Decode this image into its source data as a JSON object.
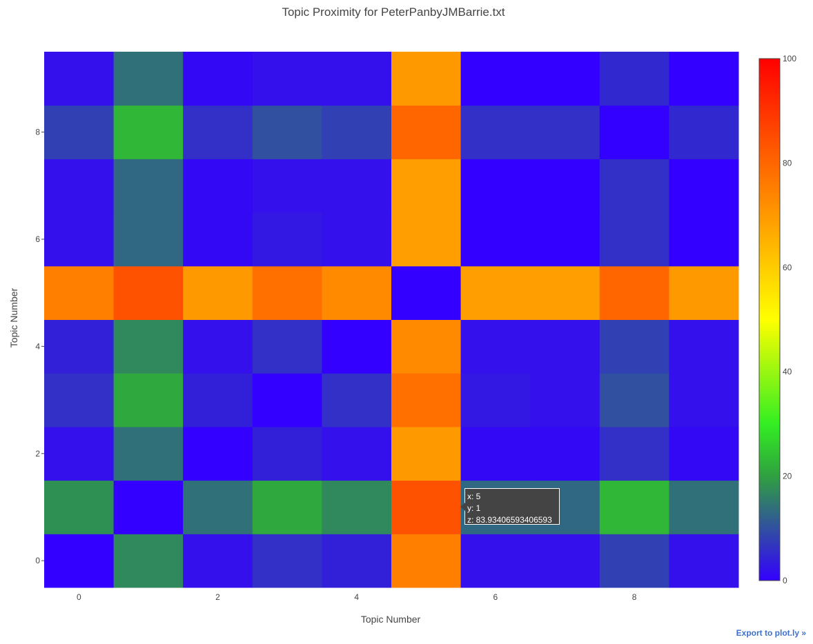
{
  "page": {
    "export_link": "Export to plot.ly »"
  },
  "hover": {
    "x_line": "x: 5",
    "y_line": "y: 1",
    "z_line": "z: 83.93406593406593"
  },
  "chart_data": {
    "type": "heatmap",
    "title": "Topic Proximity for PeterPanbyJMBarrie.txt",
    "xlabel": "Topic Number",
    "ylabel": "Topic Number",
    "x": [
      0,
      1,
      2,
      3,
      4,
      5,
      6,
      7,
      8,
      9
    ],
    "y": [
      0,
      1,
      2,
      3,
      4,
      5,
      6,
      7,
      8,
      9
    ],
    "x_ticks": [
      "0",
      "2",
      "4",
      "6",
      "8"
    ],
    "y_ticks": [
      "0",
      "2",
      "4",
      "6",
      "8"
    ],
    "zmin": 0,
    "zmax": 100,
    "colorbar_ticks": [
      "0",
      "20",
      "40",
      "60",
      "80",
      "100"
    ],
    "colorscale": [
      [
        0,
        "#3300ff"
      ],
      [
        0.2,
        "#2fa040"
      ],
      [
        0.3,
        "#33ee22"
      ],
      [
        0.5,
        "#ffff00"
      ],
      [
        0.7,
        "#ff9900"
      ],
      [
        1,
        "#ff0000"
      ]
    ],
    "z": [
      [
        0,
        17,
        2,
        6,
        4,
        75,
        2,
        2,
        8,
        2
      ],
      [
        18,
        0,
        14,
        21,
        17,
        84,
        13,
        13,
        23,
        14
      ],
      [
        2,
        14,
        0,
        4,
        2,
        70,
        1,
        1,
        6,
        1
      ],
      [
        6,
        21,
        4,
        0,
        6,
        78,
        3,
        2,
        10,
        2
      ],
      [
        4,
        17,
        2,
        6,
        0,
        73,
        2,
        2,
        8,
        2
      ],
      [
        75,
        84,
        70,
        78,
        73,
        0,
        69,
        69,
        80,
        70
      ],
      [
        2,
        13,
        1,
        3,
        2,
        69,
        0,
        0,
        6,
        0
      ],
      [
        2,
        13,
        1,
        2,
        2,
        69,
        0,
        0,
        6,
        0
      ],
      [
        8,
        23,
        6,
        10,
        8,
        80,
        6,
        6,
        0,
        5
      ],
      [
        2,
        14,
        1,
        2,
        2,
        70,
        0,
        0,
        5,
        0
      ]
    ]
  }
}
